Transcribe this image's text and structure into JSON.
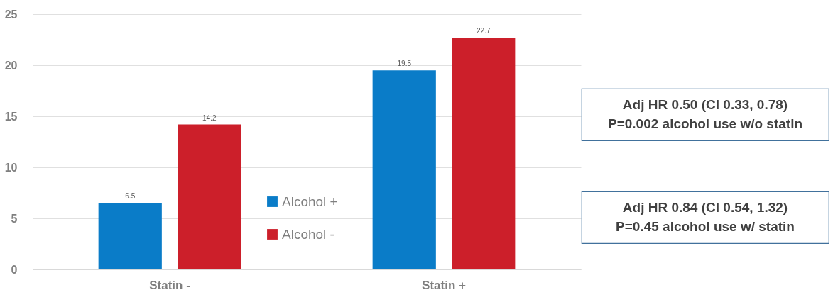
{
  "chart_data": {
    "type": "bar",
    "categories": [
      "Statin -",
      "Statin +"
    ],
    "series": [
      {
        "name": "Alcohol +",
        "color": "#0a7cc8",
        "values": [
          6.5,
          19.5
        ]
      },
      {
        "name": "Alcohol -",
        "color": "#cc1f2a",
        "values": [
          14.2,
          22.7
        ]
      }
    ],
    "ylim": [
      0,
      25
    ],
    "yticks": [
      0,
      5,
      10,
      15,
      20,
      25
    ],
    "grid": "y",
    "legend": "center",
    "data_labels": true,
    "annotations": [
      "Adj HR 0.50 (CI 0.33, 0.78)\nP=0.002 alcohol use w/o statin",
      "Adj HR 0.84 (CI 0.54, 1.32)\nP=0.45 alcohol use w/ statin"
    ]
  }
}
